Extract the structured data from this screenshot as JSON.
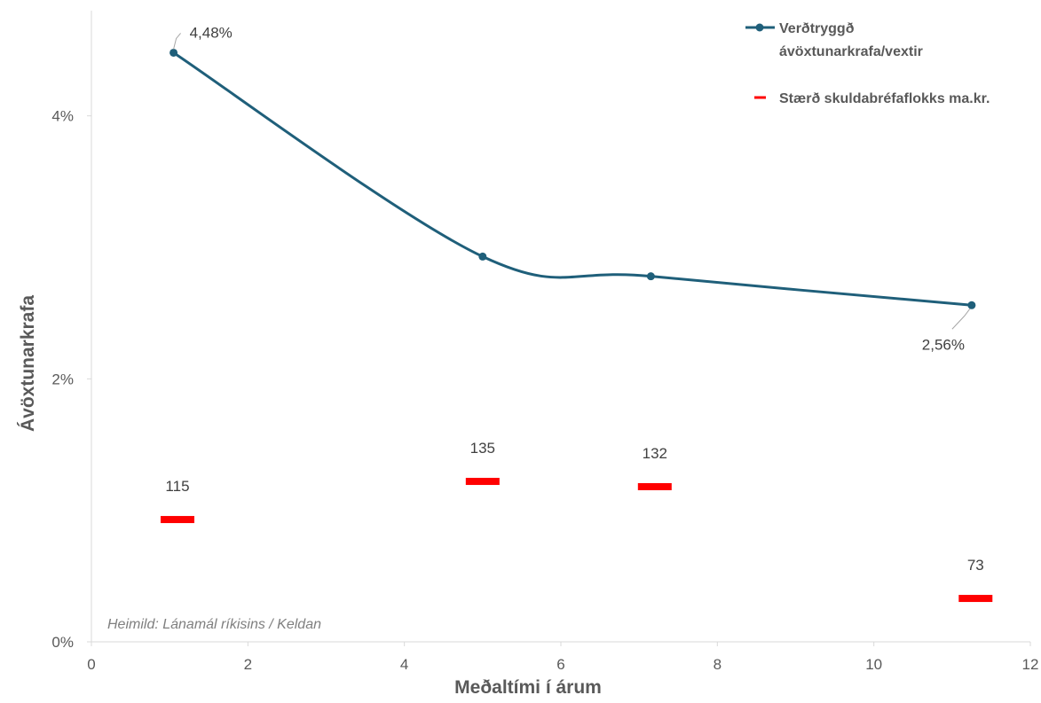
{
  "chart_data": {
    "type": "scatter",
    "title": "",
    "xlabel": "Meðaltími í árum",
    "ylabel": "Ávöxtunarkrafa",
    "xlim": [
      0,
      12
    ],
    "ylim": [
      0,
      4.8
    ],
    "x_ticks": [
      0,
      2,
      4,
      6,
      8,
      10,
      12
    ],
    "x_tick_labels": [
      "0",
      "2",
      "4",
      "6",
      "8",
      "10",
      "12"
    ],
    "y_ticks": [
      0,
      2,
      4
    ],
    "y_tick_labels": [
      "0%",
      "2%",
      "4%"
    ],
    "grid": false,
    "legend_position": "top-right",
    "series": [
      {
        "name": "Verðtryggð ávöxtunarkrafa/vextir",
        "kind": "line-smooth",
        "color": "#1f5f7a",
        "x": [
          1.05,
          5.0,
          7.15,
          11.25
        ],
        "y": [
          4.48,
          2.93,
          2.78,
          2.56
        ],
        "labels": [
          "4,48%",
          "",
          "",
          "2,56%"
        ]
      },
      {
        "name": "Stærð skuldabréfaflokks ma.kr.",
        "kind": "dash-marker",
        "color": "#ff0000",
        "x": [
          1.1,
          5.0,
          7.2,
          11.3
        ],
        "y": [
          0.93,
          1.22,
          1.18,
          0.33
        ],
        "labels": [
          "115",
          "135",
          "132",
          "73"
        ]
      }
    ],
    "legend": {
      "line1": "Verðtryggð",
      "line2": "ávöxtunarkrafa/vextir",
      "bar": "Stærð skuldabréfaflokks ma.kr."
    },
    "annotation": "Heimild: Lánamál ríkisins / Keldan"
  }
}
